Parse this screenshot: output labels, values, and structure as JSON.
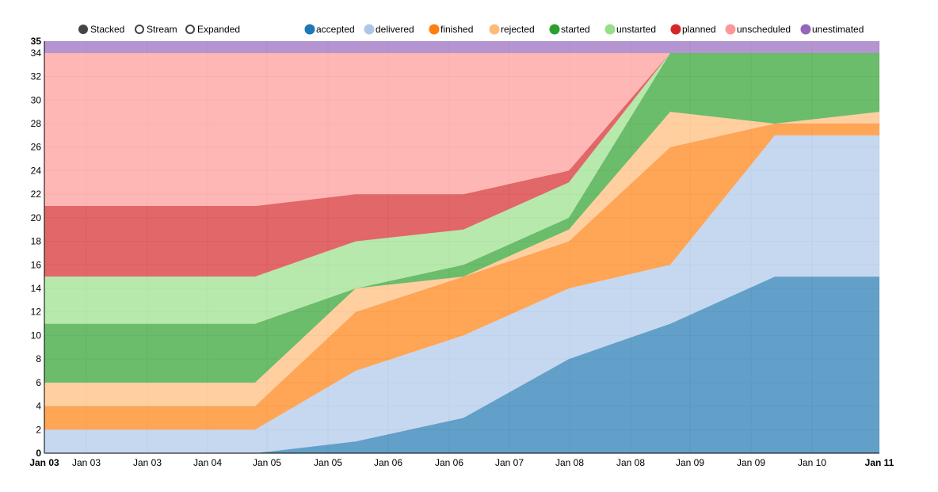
{
  "controls": [
    {
      "label": "Stacked",
      "selected": true
    },
    {
      "label": "Stream",
      "selected": false
    },
    {
      "label": "Expanded",
      "selected": false
    }
  ],
  "chart_data": {
    "type": "area",
    "stacked": true,
    "x": [
      "Jan 03",
      "Jan 04",
      "Jan 05",
      "Jan 06",
      "Jan 08",
      "Jan 09",
      "Jan 10",
      "Jan 11"
    ],
    "x_tick_labels": [
      "Jan 03",
      "Jan 03",
      "Jan 03",
      "Jan 04",
      "Jan 05",
      "Jan 05",
      "Jan 06",
      "Jan 06",
      "Jan 07",
      "Jan 08",
      "Jan 08",
      "Jan 09",
      "Jan 09",
      "Jan 10",
      "Jan 11"
    ],
    "y_tick_labels": [
      "0",
      "2",
      "4",
      "6",
      "8",
      "10",
      "12",
      "14",
      "16",
      "18",
      "20",
      "22",
      "24",
      "26",
      "28",
      "30",
      "32",
      "34",
      "35"
    ],
    "ylim": [
      0,
      35
    ],
    "grid": true,
    "legend_position": "top",
    "series": [
      {
        "name": "accepted",
        "color": "#1f77b4",
        "values": [
          0,
          0,
          1,
          3,
          8,
          11,
          15,
          15
        ]
      },
      {
        "name": "delivered",
        "color": "#aec7e8",
        "values": [
          2,
          2,
          6,
          7,
          6,
          5,
          12,
          12
        ]
      },
      {
        "name": "finished",
        "color": "#ff7f0e",
        "values": [
          2,
          2,
          5,
          5,
          4,
          10,
          1,
          1
        ]
      },
      {
        "name": "rejected",
        "color": "#ffbb78",
        "values": [
          2,
          2,
          2,
          0,
          1,
          3,
          0,
          1
        ]
      },
      {
        "name": "started",
        "color": "#2ca02c",
        "values": [
          5,
          5,
          0,
          1,
          1,
          5,
          6,
          5
        ]
      },
      {
        "name": "unstarted",
        "color": "#98df8a",
        "values": [
          4,
          4,
          4,
          3,
          3,
          0,
          0,
          0
        ]
      },
      {
        "name": "planned",
        "color": "#d62728",
        "values": [
          6,
          6,
          4,
          3,
          1,
          0,
          0,
          0
        ]
      },
      {
        "name": "unscheduled",
        "color": "#ff9896",
        "values": [
          13,
          13,
          12,
          12,
          10,
          0,
          0,
          0
        ]
      },
      {
        "name": "unestimated",
        "color": "#9467bd",
        "values": [
          1,
          1,
          1,
          1,
          1,
          1,
          1,
          1
        ]
      }
    ]
  }
}
